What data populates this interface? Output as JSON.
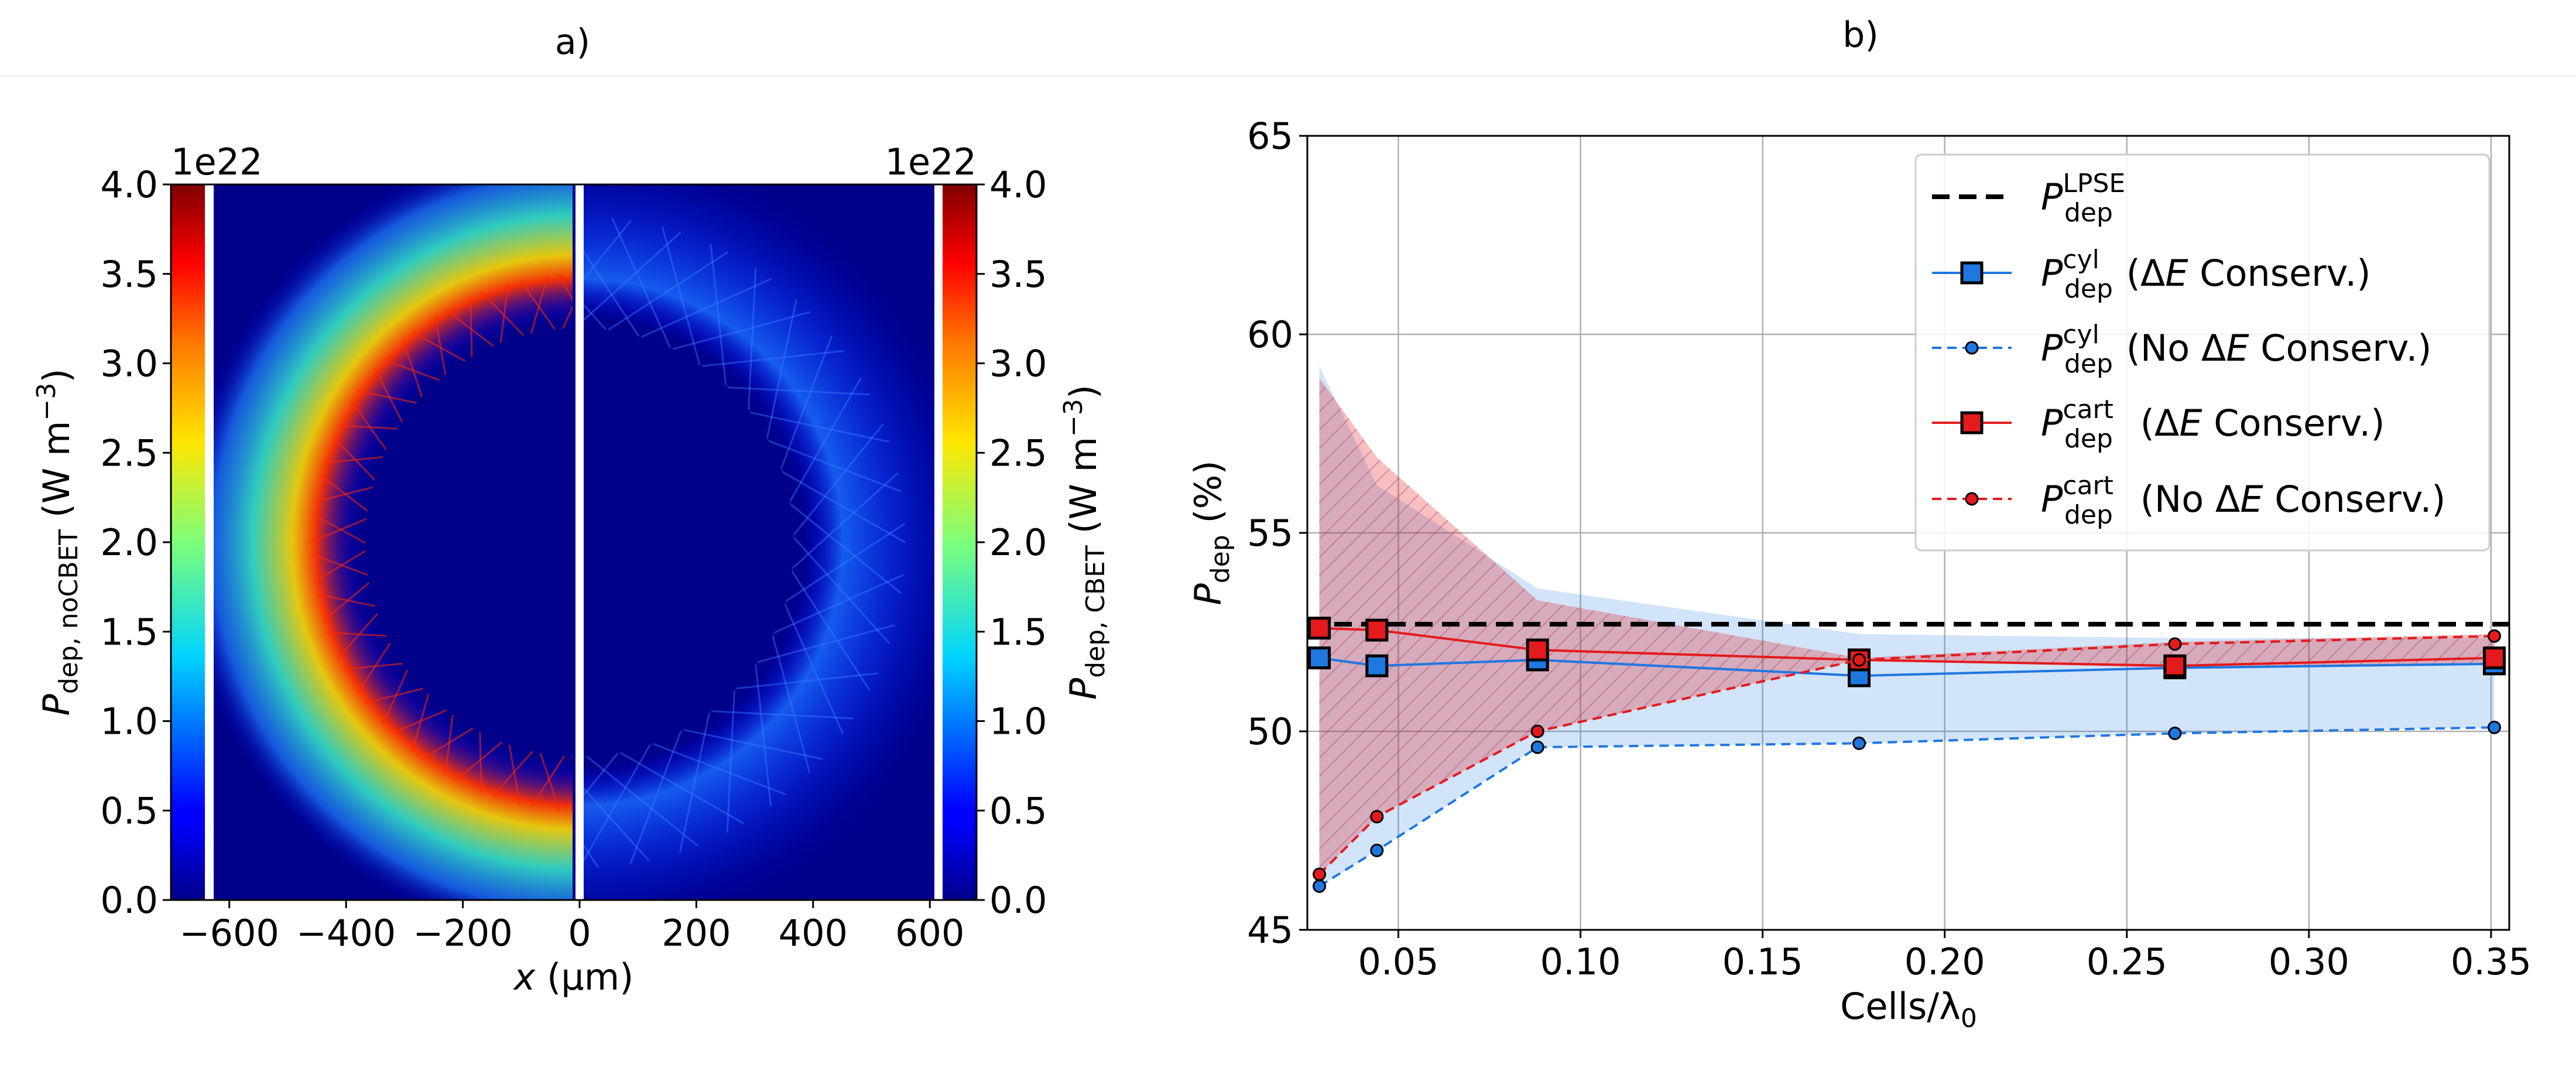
{
  "panels": [
    {
      "label": "a)"
    },
    {
      "label": "b)"
    }
  ],
  "left_panel": {
    "xlabel_var": "x",
    "xlabel_unit": "(μm)",
    "x_ticks": [
      "−600",
      "−400",
      "−200",
      "0",
      "200",
      "400",
      "600"
    ],
    "x_tick_values": [
      -600,
      -400,
      -200,
      0,
      200,
      400,
      600
    ],
    "xlim": [
      -700,
      680
    ],
    "colorbar_left": {
      "label_main": "P",
      "label_sub": "dep, noCBET",
      "label_unit": "(W m",
      "label_exp": "−3",
      "label_close": ")",
      "scale_text": "1e22",
      "ticks": [
        "0.0",
        "0.5",
        "1.0",
        "1.5",
        "2.0",
        "2.5",
        "3.0",
        "3.5",
        "4.0"
      ],
      "tick_values": [
        0,
        0.5,
        1.0,
        1.5,
        2.0,
        2.5,
        3.0,
        3.5,
        4.0
      ],
      "range": [
        0,
        4.0
      ],
      "colormap": "jet"
    },
    "colorbar_right": {
      "label_main": "P",
      "label_sub": "dep, CBET",
      "label_unit": "(W m",
      "label_exp": "−3",
      "label_close": ")",
      "scale_text": "1e22",
      "ticks": [
        "0.0",
        "0.5",
        "1.0",
        "1.5",
        "2.0",
        "2.5",
        "3.0",
        "3.5",
        "4.0"
      ],
      "tick_values": [
        0,
        0.5,
        1.0,
        1.5,
        2.0,
        2.5,
        3.0,
        3.5,
        4.0
      ],
      "range": [
        0,
        4.0
      ],
      "colormap": "jet"
    },
    "colors": {
      "background": "#00008b",
      "divider": "#ffffff"
    }
  },
  "chart_data": {
    "type": "line",
    "title": "",
    "xlabel": "Cells/λ",
    "xlabel_sub": "0",
    "ylabel": "P",
    "ylabel_sub": "dep",
    "ylabel_unit": "(%)",
    "xlim": [
      0.025,
      0.355
    ],
    "ylim": [
      45,
      65
    ],
    "grid": true,
    "x_ticks": [
      "0.05",
      "0.10",
      "0.15",
      "0.20",
      "0.25",
      "0.30",
      "0.35"
    ],
    "x_tick_values": [
      0.05,
      0.1,
      0.15,
      0.2,
      0.25,
      0.3,
      0.35
    ],
    "y_ticks": [
      "45",
      "50",
      "55",
      "60",
      "65"
    ],
    "y_tick_values": [
      45,
      50,
      55,
      60,
      65
    ],
    "x": [
      0.0283,
      0.0441,
      0.0882,
      0.1765,
      0.2632,
      0.3509
    ],
    "reference_line": {
      "value": 52.7,
      "color": "#000000"
    },
    "series": [
      {
        "values": [
          51.85,
          51.65,
          51.8,
          51.4,
          51.6,
          51.7
        ],
        "color": "#1f77e0",
        "marker": "square",
        "dashed": false
      },
      {
        "values": [
          46.1,
          47.0,
          49.6,
          49.7,
          49.95,
          50.1
        ],
        "color": "#1f77e0",
        "marker": "circle",
        "dashed": true
      },
      {
        "values": [
          52.6,
          52.55,
          52.05,
          51.8,
          51.65,
          51.85
        ],
        "color": "#e41a1c",
        "marker": "square",
        "dashed": false
      },
      {
        "values": [
          46.4,
          47.85,
          50.0,
          51.8,
          52.2,
          52.4
        ],
        "color": "#e41a1c",
        "marker": "circle",
        "dashed": true
      }
    ],
    "bands": [
      {
        "color": "#1f77e0",
        "upper": [
          59.2,
          56.2,
          53.6,
          52.45,
          52.35,
          52.35
        ],
        "lower": [
          46.1,
          47.0,
          49.6,
          49.7,
          49.95,
          50.1
        ]
      },
      {
        "color": "#e41a1c",
        "upper": [
          58.9,
          56.9,
          53.3,
          51.85,
          52.25,
          52.45
        ],
        "lower": [
          46.4,
          47.85,
          50.0,
          51.8,
          51.6,
          51.7
        ]
      }
    ],
    "legend": {
      "placement": "top-right",
      "entries": [
        {
          "main": "P",
          "sup": "LPSE",
          "sub": "dep",
          "tail": "",
          "delta": false
        },
        {
          "main": "P",
          "sup": "cyl",
          "sub": "dep",
          "tail": " Conserv.)",
          "pre": " (",
          "delta": true
        },
        {
          "main": "P",
          "sup": "cyl",
          "sub": "dep",
          "tail": " Conserv.)",
          "pre": " (No ",
          "delta": true
        },
        {
          "main": "P",
          "sup": "cart",
          "sub": "dep",
          "tail": " Conserv.)",
          "pre": " (",
          "delta": true
        },
        {
          "main": "P",
          "sup": "cart",
          "sub": "dep",
          "tail": " Conserv.)",
          "pre": " (No ",
          "delta": true
        }
      ]
    }
  }
}
